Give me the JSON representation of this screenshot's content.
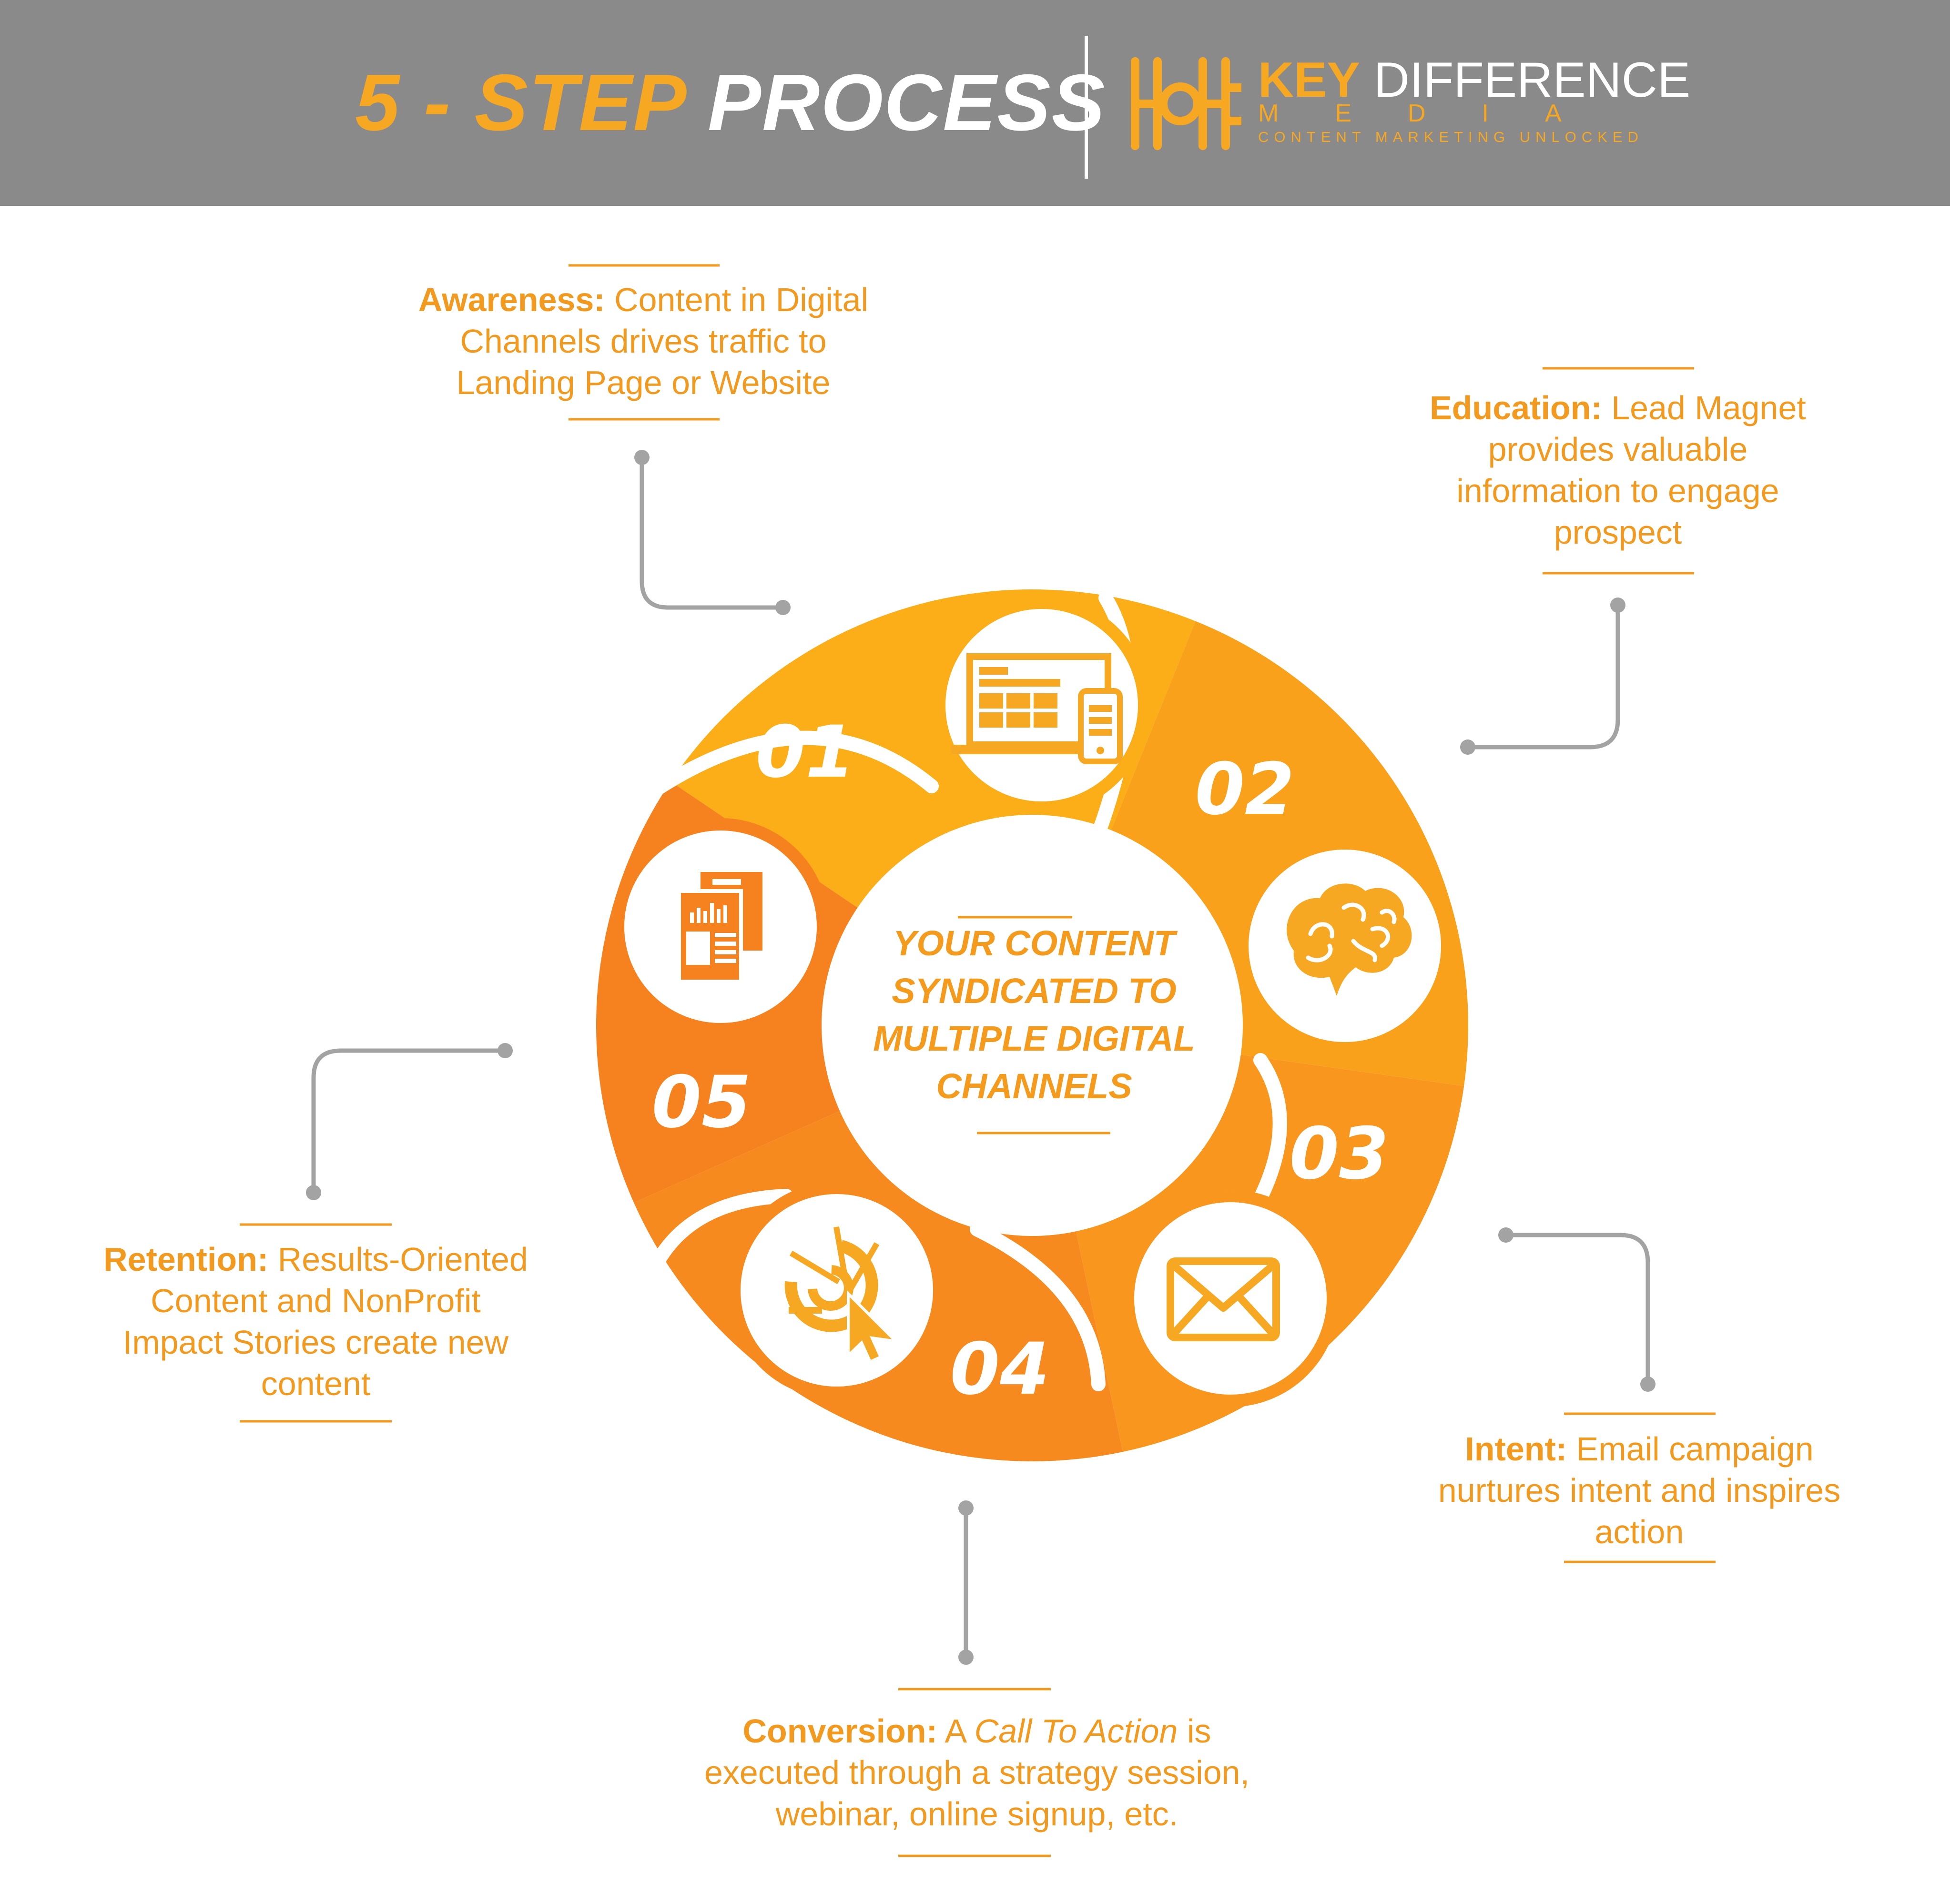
{
  "header": {
    "title_part1": "5 - STEP",
    "title_part2": "PROCESS",
    "brand_key": "KEY",
    "brand_difference": "DIFFERENCE",
    "brand_media": "MEDIA",
    "brand_tagline": "CONTENT MARKETING UNLOCKED"
  },
  "center": {
    "lines": [
      "YOUR CONTENT",
      "SYNDICATED TO",
      "MULTIPLE DIGITAL",
      "CHANNELS"
    ]
  },
  "steps": [
    {
      "number": "01",
      "icon": "laptop-mobile-icon",
      "label": "Awareness:",
      "lines": [
        "Content in Digital",
        "Channels drives traffic to",
        "Landing Page or Website"
      ]
    },
    {
      "number": "02",
      "icon": "brain-icon",
      "label": "Education:",
      "lines": [
        "Lead Magnet",
        "provides valuable",
        "information to engage",
        "prospect"
      ]
    },
    {
      "number": "03",
      "icon": "envelope-icon",
      "label": "Intent:",
      "lines": [
        "Email campaign",
        "nurtures intent and inspires",
        "action"
      ]
    },
    {
      "number": "04",
      "icon": "target-cursor-icon",
      "label": "Conversion:",
      "first_pre": "A",
      "first_italic": "Call To Action",
      "first_post": "is",
      "lines": [
        "executed through a strategy session,",
        "webinar, online signup, etc."
      ]
    },
    {
      "number": "05",
      "icon": "report-chart-icon",
      "label": "Retention:",
      "lines": [
        "Results-Oriented",
        "Content and NonProfit",
        "Impact Stories create new",
        "content"
      ]
    }
  ],
  "colors": {
    "header_bg": "#8a8a8a",
    "accent": "#f7a823",
    "segment_1": "#fbae17",
    "segment_2": "#f9a11b",
    "segment_3": "#f8961d",
    "segment_4": "#f78a1e",
    "segment_5": "#f6821f",
    "connector": "#a3a3a3"
  }
}
